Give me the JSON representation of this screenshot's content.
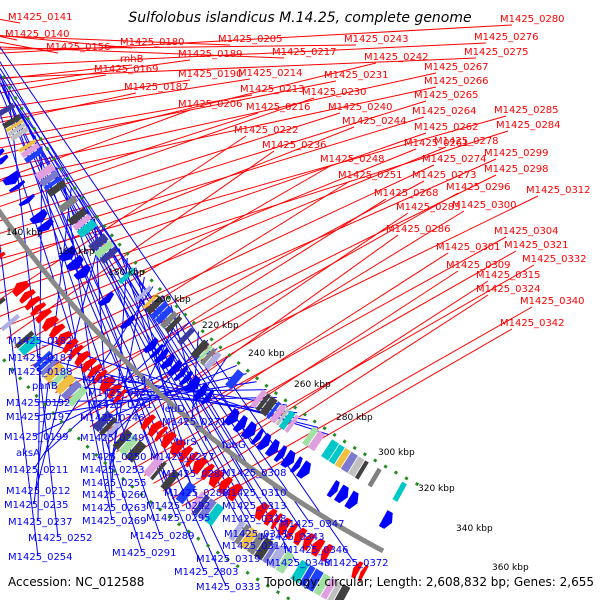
{
  "title": "Sulfolobus islandicus M.14.25, complete genome",
  "accession_label": "Accession: NC_012588",
  "topology_label": "Topology: circular; Length: 2,608,832 bp; Genes: 2,655",
  "colors": {
    "forward": "#ff0000",
    "reverse": "#0000ff",
    "backbone": "#888888",
    "dots": "#228b22"
  },
  "tick_labels": [
    "140 kbp",
    "160 kbp",
    "180 kbp",
    "200 kbp",
    "220 kbp",
    "240 kbp",
    "260 kbp",
    "280 kbp",
    "300 kbp",
    "320 kbp",
    "340 kbp",
    "360 kbp"
  ],
  "top_labels": [
    "M1425_0141",
    "M1425_0140",
    "M1425_0156",
    "M1425_0180",
    "M1425_0205",
    "M1425_0217",
    "M1425_0243",
    "M1425_0280",
    "M1425_0276",
    "M1425_0275",
    "rnhB",
    "M1425_0189",
    "M1425_0169",
    "M1425_0190",
    "M1425_0214",
    "M1425_0187",
    "M1425_0213",
    "M1425_0231",
    "M1425_0242",
    "M1425_0267",
    "M1425_0266",
    "M1425_0206",
    "M1425_0216",
    "M1425_0230",
    "M1425_0240",
    "M1425_0265",
    "M1425_0264",
    "M1425_0285",
    "M1425_0244",
    "M1425_0262",
    "M1425_0284",
    "M1425_0222",
    "M1425_0261",
    "M1425_0278",
    "M1425_0236",
    "M1425_0248",
    "M1425_0274",
    "M1425_0299",
    "M1425_0251",
    "M1425_0273",
    "M1425_0298",
    "M1425_0268",
    "M1425_0296",
    "M1425_0312",
    "M1425_0283",
    "M1425_0300",
    "M1425_0286",
    "M1425_0304",
    "M1425_0301",
    "M1425_0321",
    "M1425_0309",
    "M1425_0332",
    "M1425_0315",
    "M1425_0324",
    "M1425_0340",
    "M1425_0342"
  ],
  "bottom_labels": [
    "M1425_0182",
    "M1425_0183",
    "M1425_0188",
    "panB",
    "M1425_0234",
    "M1425_0192",
    "M1425_0238",
    "M1425_0197",
    "M1425_0241",
    "M1425_0246",
    "leuD",
    "M1425_0199",
    "M1425_0249",
    "M1425_0271",
    "aksA",
    "M1425_0250",
    "thrS",
    "fabG",
    "M1425_0211",
    "M1425_0253",
    "M1425_0277",
    "M1425_0255",
    "M1425_0287",
    "M1425_0308",
    "M1425_0212",
    "M1425_0260",
    "M1425_0288",
    "M1425_0310",
    "M1425_0235",
    "M1425_0263",
    "M1425_0292",
    "M1425_0313",
    "M1425_0237",
    "M1425_0269",
    "M1425_0295",
    "M1425_0318",
    "M1425_0347",
    "M1425_0252",
    "M1425_0289",
    "M1425_0311",
    "M1425_0343",
    "M1425_0314",
    "M1425_0346",
    "M1425_0254",
    "M1425_0291",
    "M1425_0319",
    "M1425_0348",
    "M1425_0372",
    "M1425_2803",
    "M1425_0333"
  ]
}
